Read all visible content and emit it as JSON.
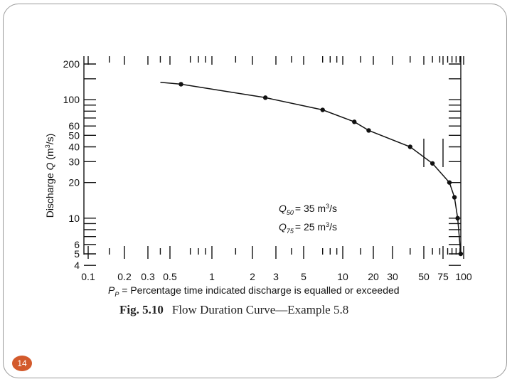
{
  "slide": {
    "page_number": "14",
    "badge_color": "#d35a2c"
  },
  "caption": {
    "fig_number": "Fig. 5.10",
    "fig_title": "Flow Duration Curve—Example 5.8"
  },
  "chart_data": {
    "type": "line",
    "xscale": "probability",
    "yscale": "log",
    "xlim": [
      0.1,
      100
    ],
    "ylim": [
      4,
      200
    ],
    "x_ticks": [
      0.1,
      0.2,
      0.3,
      0.5,
      1,
      2,
      3,
      5,
      10,
      20,
      30,
      50,
      75,
      100
    ],
    "x_tick_labels": [
      "0.1",
      "0.2",
      "0.3",
      "0.5",
      "1",
      "2",
      "3",
      "5",
      "10",
      "20",
      "30",
      "50",
      "75",
      "100"
    ],
    "y_ticks": [
      4,
      5,
      6,
      10,
      20,
      30,
      40,
      50,
      60,
      100,
      200
    ],
    "y_tick_labels": [
      "4",
      "5",
      "6",
      "10",
      "20",
      "30",
      "40",
      "50",
      "60",
      "100",
      "200"
    ],
    "xlabel": {
      "symbol": "P",
      "subscript": "P",
      "text": " = Percentage time indicated discharge is equalled or exceeded"
    },
    "ylabel": {
      "prefix": "Discharge ",
      "symbol": "Q",
      "unit_open": " (m",
      "unit_exp": "3",
      "unit_close": "/s)"
    },
    "series": [
      {
        "line_only": {
          "x": [
            0.4
          ],
          "y": [
            140
          ]
        },
        "x": [
          0.6,
          2.5,
          7,
          13,
          18,
          40,
          60,
          82,
          88,
          92,
          96
        ],
        "y": [
          135,
          104,
          82,
          65,
          55,
          40,
          29,
          20,
          15,
          10,
          5
        ]
      }
    ],
    "annotations": [
      {
        "symbol": "Q",
        "subscript": "50",
        "text": "= 35 m",
        "exp": "3",
        "unit_end": "/s"
      },
      {
        "symbol": "Q",
        "subscript": "75",
        "text": "= 25 m",
        "exp": "3",
        "unit_end": "/s"
      }
    ],
    "grid": false
  }
}
